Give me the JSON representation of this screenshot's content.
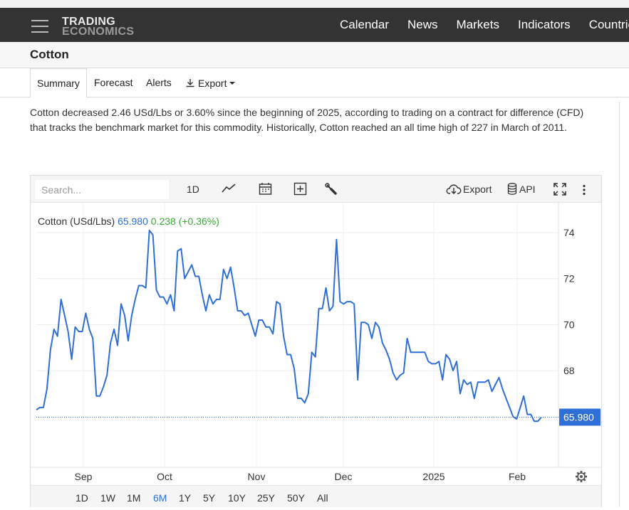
{
  "header": {
    "logo_line1": "TRADING",
    "logo_line2": "ECONOMICS",
    "nav": [
      "Calendar",
      "News",
      "Markets",
      "Indicators",
      "Countries"
    ]
  },
  "page": {
    "title": "Cotton",
    "tabs": [
      "Summary",
      "Forecast",
      "Alerts",
      "Export"
    ],
    "active_tab": "Summary",
    "description": "Cotton decreased 2.46 USd/Lbs or 3.60% since the beginning of 2025, according to trading on a contract for difference (CFD) that tracks the benchmark market for this commodity. Historically, Cotton reached an all time high of 227 in March of 2011."
  },
  "chart_toolbar": {
    "search_placeholder": "Search...",
    "interval": "1D",
    "export": "Export",
    "api": "API"
  },
  "chart_data": {
    "type": "line",
    "title": "",
    "legend": {
      "name": "Cotton (USd/Lbs)",
      "last": "65.980",
      "change": "0.238 (+0.36%)"
    },
    "last_value_label": "65.980",
    "last_value": 65.98,
    "ylim": [
      63.8,
      75.3
    ],
    "yticks": [
      74,
      72,
      70,
      68
    ],
    "xticks": [
      "Sep",
      "Oct",
      "Nov",
      "Dec",
      "2025",
      "Feb"
    ],
    "grid": true,
    "colors": {
      "line": "#2f6fd8",
      "up": "#3aaa35",
      "last_badge": "#2f6fd8"
    },
    "y": [
      66.3,
      66.4,
      66.4,
      67.2,
      68.9,
      69.8,
      69.5,
      71.1,
      70.4,
      69.7,
      68.5,
      69.9,
      69.7,
      69.7,
      70.5,
      69.8,
      69.4,
      66.9,
      66.9,
      67.3,
      67.8,
      69.2,
      69.8,
      69.1,
      70.9,
      70.4,
      69.3,
      70.4,
      71.1,
      71.7,
      71.7,
      71.6,
      74.1,
      73.9,
      71.5,
      71.2,
      71.2,
      70.9,
      71.3,
      70.6,
      73.2,
      73.3,
      72.0,
      72.3,
      72.6,
      72.1,
      72.1,
      71.3,
      70.6,
      71.3,
      70.9,
      71.1,
      71.1,
      72.4,
      72.0,
      72.5,
      71.6,
      70.6,
      70.6,
      70.4,
      70.5,
      70.0,
      69.5,
      70.2,
      70.2,
      69.9,
      69.9,
      69.6,
      71.0,
      70.9,
      69.5,
      68.7,
      68.7,
      68.1,
      66.8,
      66.8,
      66.6,
      67.0,
      68.8,
      68.6,
      70.7,
      70.7,
      71.6,
      70.6,
      70.8,
      73.7,
      71.0,
      70.9,
      71.0,
      71.0,
      70.9,
      67.6,
      70.1,
      70.1,
      70.0,
      69.4,
      70.1,
      69.9,
      69.2,
      68.9,
      68.5,
      67.9,
      67.6,
      67.8,
      67.9,
      69.4,
      68.8,
      68.8,
      68.8,
      68.8,
      68.8,
      68.4,
      68.3,
      68.3,
      68.4,
      67.6,
      68.7,
      68.5,
      68.0,
      68.4,
      67.0,
      67.6,
      67.4,
      67.5,
      66.8,
      67.5,
      67.5,
      67.5,
      67.6,
      67.1,
      67.4,
      67.7,
      67.2,
      66.8,
      66.4,
      66.0,
      65.9,
      66.4,
      66.9,
      66.1,
      66.1,
      65.8,
      65.8,
      65.98
    ]
  },
  "ranges": [
    "1D",
    "1W",
    "1M",
    "6M",
    "1Y",
    "5Y",
    "10Y",
    "25Y",
    "50Y",
    "All"
  ],
  "active_range": "6M"
}
